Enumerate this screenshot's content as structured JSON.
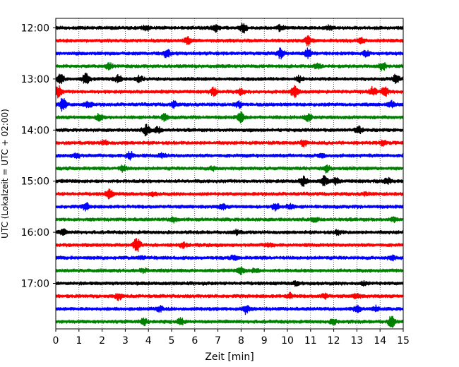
{
  "chart_data": {
    "type": "line",
    "title": "",
    "xlabel": "Zeit  [min]",
    "ylabel": "UTC (Lokalzeit = UTC + 02:00)",
    "xlim": [
      0,
      15
    ],
    "x_ticks": [
      0,
      1,
      2,
      3,
      4,
      5,
      6,
      7,
      8,
      9,
      10,
      11,
      12,
      13,
      14,
      15
    ],
    "x_tick_labels": [
      "0",
      "1",
      "2",
      "3",
      "4",
      "5",
      "6",
      "7",
      "8",
      "9",
      "10",
      "11",
      "12",
      "13",
      "14",
      "15"
    ],
    "y_tick_labels": [
      "12:00",
      "13:00",
      "14:00",
      "15:00",
      "16:00",
      "17:00"
    ],
    "grid": "vertical-dotted",
    "trace_interval_minutes": 15,
    "trace_colors": [
      "#000000",
      "#ff0000",
      "#0000ff",
      "#008000"
    ],
    "traces": [
      {
        "start": "12:00",
        "color": "#000000",
        "events": [
          [
            3.9,
            0.6
          ],
          [
            6.9,
            0.7
          ],
          [
            8.1,
            1.0
          ],
          [
            9.7,
            0.5
          ],
          [
            11.8,
            0.4
          ]
        ]
      },
      {
        "start": "12:15",
        "color": "#ff0000",
        "events": [
          [
            5.7,
            0.7
          ],
          [
            10.9,
            0.9
          ],
          [
            13.2,
            0.5
          ]
        ]
      },
      {
        "start": "12:30",
        "color": "#0000ff",
        "events": [
          [
            4.8,
            0.8
          ],
          [
            9.7,
            1.0
          ],
          [
            10.9,
            1.0
          ],
          [
            13.4,
            0.5
          ]
        ]
      },
      {
        "start": "12:45",
        "color": "#008000",
        "events": [
          [
            2.3,
            0.6
          ],
          [
            11.3,
            0.4
          ],
          [
            14.1,
            0.8
          ]
        ]
      },
      {
        "start": "13:00",
        "color": "#000000",
        "events": [
          [
            0.2,
            1.0
          ],
          [
            1.3,
            1.0
          ],
          [
            2.7,
            0.7
          ],
          [
            3.6,
            0.6
          ],
          [
            10.5,
            0.6
          ],
          [
            14.7,
            0.9
          ]
        ]
      },
      {
        "start": "13:15",
        "color": "#ff0000",
        "events": [
          [
            0.1,
            1.3
          ],
          [
            6.8,
            0.7
          ],
          [
            8.0,
            0.6
          ],
          [
            10.3,
            1.2
          ],
          [
            13.7,
            1.0
          ],
          [
            14.2,
            1.0
          ]
        ]
      },
      {
        "start": "13:30",
        "color": "#0000ff",
        "events": [
          [
            0.3,
            1.3
          ],
          [
            1.4,
            0.7
          ],
          [
            5.1,
            0.6
          ],
          [
            7.9,
            0.6
          ],
          [
            14.5,
            0.6
          ]
        ]
      },
      {
        "start": "13:45",
        "color": "#008000",
        "events": [
          [
            1.9,
            0.8
          ],
          [
            4.7,
            0.6
          ],
          [
            8.0,
            1.0
          ],
          [
            10.9,
            0.7
          ]
        ]
      },
      {
        "start": "14:00",
        "color": "#000000",
        "events": [
          [
            3.9,
            1.1
          ],
          [
            4.4,
            0.6
          ],
          [
            13.1,
            0.7
          ]
        ]
      },
      {
        "start": "14:15",
        "color": "#ff0000",
        "events": [
          [
            2.1,
            0.4
          ],
          [
            10.7,
            0.6
          ],
          [
            14.1,
            0.4
          ]
        ]
      },
      {
        "start": "14:30",
        "color": "#0000ff",
        "events": [
          [
            0.9,
            0.5
          ],
          [
            3.2,
            0.8
          ],
          [
            4.6,
            0.4
          ],
          [
            11.5,
            0.4
          ]
        ]
      },
      {
        "start": "14:45",
        "color": "#008000",
        "events": [
          [
            2.9,
            0.6
          ],
          [
            6.8,
            0.4
          ],
          [
            11.7,
            0.7
          ]
        ]
      },
      {
        "start": "15:00",
        "color": "#000000",
        "events": [
          [
            10.7,
            1.0
          ],
          [
            11.6,
            0.9
          ],
          [
            12.1,
            0.6
          ],
          [
            14.3,
            0.6
          ]
        ]
      },
      {
        "start": "15:15",
        "color": "#ff0000",
        "events": [
          [
            2.3,
            0.9
          ],
          [
            4.2,
            0.3
          ],
          [
            13.4,
            0.3
          ]
        ]
      },
      {
        "start": "15:30",
        "color": "#0000ff",
        "events": [
          [
            1.3,
            0.7
          ],
          [
            7.2,
            0.5
          ],
          [
            9.5,
            0.8
          ],
          [
            10.1,
            0.5
          ]
        ]
      },
      {
        "start": "15:45",
        "color": "#008000",
        "events": [
          [
            5.1,
            0.5
          ],
          [
            11.2,
            0.4
          ],
          [
            14.6,
            0.4
          ]
        ]
      },
      {
        "start": "16:00",
        "color": "#000000",
        "events": [
          [
            0.3,
            0.5
          ],
          [
            7.8,
            0.4
          ],
          [
            12.2,
            0.4
          ]
        ]
      },
      {
        "start": "16:15",
        "color": "#ff0000",
        "events": [
          [
            3.5,
            1.4
          ],
          [
            5.5,
            0.5
          ],
          [
            9.2,
            0.4
          ]
        ]
      },
      {
        "start": "16:30",
        "color": "#0000ff",
        "events": [
          [
            3.7,
            0.4
          ],
          [
            7.7,
            0.4
          ],
          [
            14.5,
            0.5
          ]
        ]
      },
      {
        "start": "16:45",
        "color": "#008000",
        "events": [
          [
            3.8,
            0.4
          ],
          [
            8.0,
            0.7
          ],
          [
            8.6,
            0.4
          ]
        ]
      },
      {
        "start": "17:00",
        "color": "#000000",
        "events": [
          [
            10.4,
            0.4
          ],
          [
            13.3,
            0.3
          ]
        ]
      },
      {
        "start": "17:15",
        "color": "#ff0000",
        "events": [
          [
            2.7,
            0.6
          ],
          [
            10.1,
            0.5
          ],
          [
            11.6,
            0.5
          ],
          [
            13.0,
            0.5
          ]
        ]
      },
      {
        "start": "17:30",
        "color": "#0000ff",
        "events": [
          [
            4.5,
            0.5
          ],
          [
            8.2,
            0.9
          ],
          [
            13.0,
            0.7
          ],
          [
            13.8,
            0.5
          ]
        ]
      },
      {
        "start": "17:45",
        "color": "#008000",
        "events": [
          [
            3.8,
            0.8
          ],
          [
            5.4,
            0.6
          ],
          [
            12.0,
            0.5
          ],
          [
            14.5,
            1.2
          ]
        ]
      }
    ]
  }
}
